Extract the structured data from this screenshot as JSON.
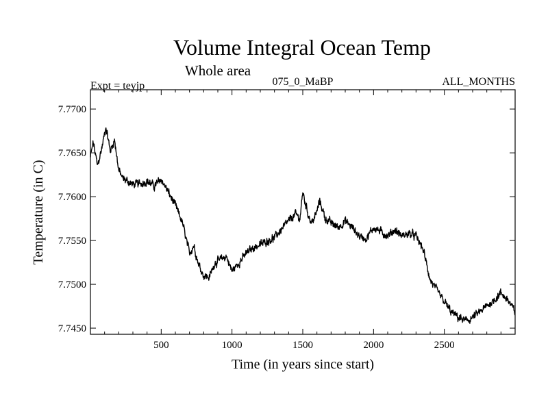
{
  "chart_data": {
    "type": "line",
    "title": "Volume Integral Ocean Temp",
    "subtitle": "Whole area",
    "experiment": "Expt = teyjp",
    "run_label": "075_0_MaBP",
    "months_label": "ALL_MONTHS",
    "xlabel": "Time (in years since start)",
    "ylabel": "Temperature (in C)",
    "xlim": [
      0,
      3000
    ],
    "ylim": [
      7.7443,
      7.7722
    ],
    "xticks": [
      {
        "value": 500,
        "label": "500"
      },
      {
        "value": 1000,
        "label": "1000"
      },
      {
        "value": 1500,
        "label": "1500"
      },
      {
        "value": 2000,
        "label": "2000"
      },
      {
        "value": 2500,
        "label": "2500"
      }
    ],
    "yticks": [
      {
        "value": 7.745,
        "label": "7.7450"
      },
      {
        "value": 7.75,
        "label": "7.7500"
      },
      {
        "value": 7.755,
        "label": "7.7550"
      },
      {
        "value": 7.76,
        "label": "7.7600"
      },
      {
        "value": 7.765,
        "label": "7.7650"
      },
      {
        "value": 7.77,
        "label": "7.7700"
      }
    ],
    "grid": false,
    "series": [
      {
        "name": "Volume Integral Ocean Temp",
        "x": [
          0,
          20,
          50,
          80,
          110,
          140,
          170,
          200,
          230,
          260,
          300,
          350,
          400,
          450,
          500,
          550,
          600,
          650,
          700,
          730,
          760,
          800,
          840,
          880,
          920,
          960,
          1000,
          1050,
          1100,
          1150,
          1200,
          1250,
          1300,
          1350,
          1400,
          1450,
          1480,
          1500,
          1530,
          1560,
          1590,
          1620,
          1660,
          1700,
          1750,
          1800,
          1850,
          1900,
          1950,
          2000,
          2050,
          2100,
          2150,
          2200,
          2250,
          2300,
          2350,
          2400,
          2450,
          2500,
          2550,
          2600,
          2650,
          2700,
          2750,
          2800,
          2850,
          2900,
          2950,
          3000
        ],
        "y": [
          7.7645,
          7.7662,
          7.7635,
          7.7655,
          7.768,
          7.7652,
          7.7665,
          7.763,
          7.762,
          7.7618,
          7.7614,
          7.7615,
          7.7618,
          7.7612,
          7.762,
          7.7605,
          7.759,
          7.757,
          7.7535,
          7.7545,
          7.7525,
          7.751,
          7.7508,
          7.7525,
          7.7528,
          7.7532,
          7.7515,
          7.7525,
          7.7535,
          7.7542,
          7.7545,
          7.755,
          7.7553,
          7.7563,
          7.7572,
          7.758,
          7.7575,
          7.7605,
          7.7585,
          7.757,
          7.7578,
          7.7595,
          7.7575,
          7.757,
          7.7565,
          7.7572,
          7.7565,
          7.7555,
          7.7552,
          7.7565,
          7.756,
          7.7555,
          7.7562,
          7.7555,
          7.7558,
          7.7555,
          7.754,
          7.7505,
          7.7492,
          7.748,
          7.7468,
          7.7462,
          7.7458,
          7.7462,
          7.7468,
          7.7475,
          7.7482,
          7.749,
          7.7482,
          7.7468
        ]
      }
    ]
  }
}
